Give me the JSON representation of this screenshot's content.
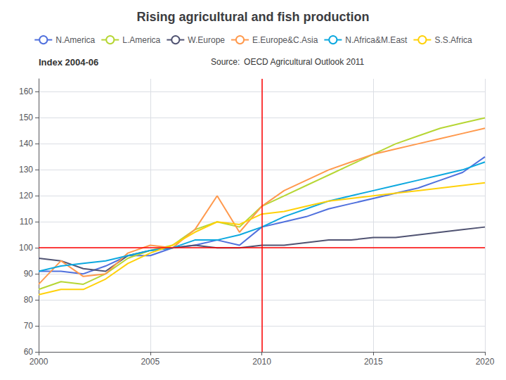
{
  "chart_data": {
    "type": "line",
    "title": "Rising agricultural and fish production",
    "annotations": [
      "Index 2004-06",
      "Source:  OECD Agricultural Outlook 2011"
    ],
    "x": [
      2000,
      2001,
      2002,
      2003,
      2004,
      2005,
      2006,
      2007,
      2008,
      2009,
      2010,
      2011,
      2012,
      2013,
      2014,
      2015,
      2016,
      2017,
      2018,
      2019,
      2020
    ],
    "series": [
      {
        "name": "N.America",
        "values": [
          91,
          91,
          90,
          93,
          97,
          97,
          100,
          101,
          103,
          101,
          108,
          110,
          112,
          115,
          117,
          119,
          121,
          123,
          126,
          129,
          135
        ]
      },
      {
        "name": "L.America",
        "values": [
          84,
          87,
          86,
          90,
          96,
          99,
          101,
          107,
          110,
          108,
          116,
          120,
          124,
          128,
          132,
          136,
          140,
          143,
          146,
          148,
          150
        ]
      },
      {
        "name": "W.Europe",
        "values": [
          96,
          95,
          92,
          91,
          97,
          99,
          100,
          101,
          100,
          100,
          101,
          101,
          102,
          103,
          103,
          104,
          104,
          105,
          106,
          107,
          108
        ]
      },
      {
        "name": "E.Europe&C.Asia",
        "values": [
          86,
          95,
          89,
          90,
          98,
          101,
          100,
          107,
          120,
          106,
          116,
          122,
          126,
          130,
          133,
          136,
          138,
          140,
          142,
          144,
          146
        ]
      },
      {
        "name": "N.Africa&M.East",
        "values": [
          91,
          93,
          94,
          95,
          97,
          99,
          100,
          103,
          103,
          105,
          108,
          112,
          115,
          118,
          120,
          122,
          124,
          126,
          128,
          130,
          133
        ]
      },
      {
        "name": "S.S.Africa",
        "values": [
          82,
          84,
          84,
          88,
          94,
          98,
          101,
          106,
          110,
          109,
          113,
          114,
          116,
          118,
          119,
          120,
          121,
          122,
          123,
          124,
          125
        ]
      }
    ],
    "xlim": [
      2000,
      2020
    ],
    "xticks": [
      2000,
      2005,
      2010,
      2015,
      2020
    ],
    "ylim": [
      60,
      165
    ],
    "yticks": [
      60,
      70,
      80,
      90,
      100,
      110,
      120,
      130,
      140,
      150,
      160
    ],
    "grid": true,
    "legend": "top",
    "reference_lines": {
      "y": [
        100
      ],
      "x": [
        2010
      ],
      "color": "#ff0000"
    }
  }
}
